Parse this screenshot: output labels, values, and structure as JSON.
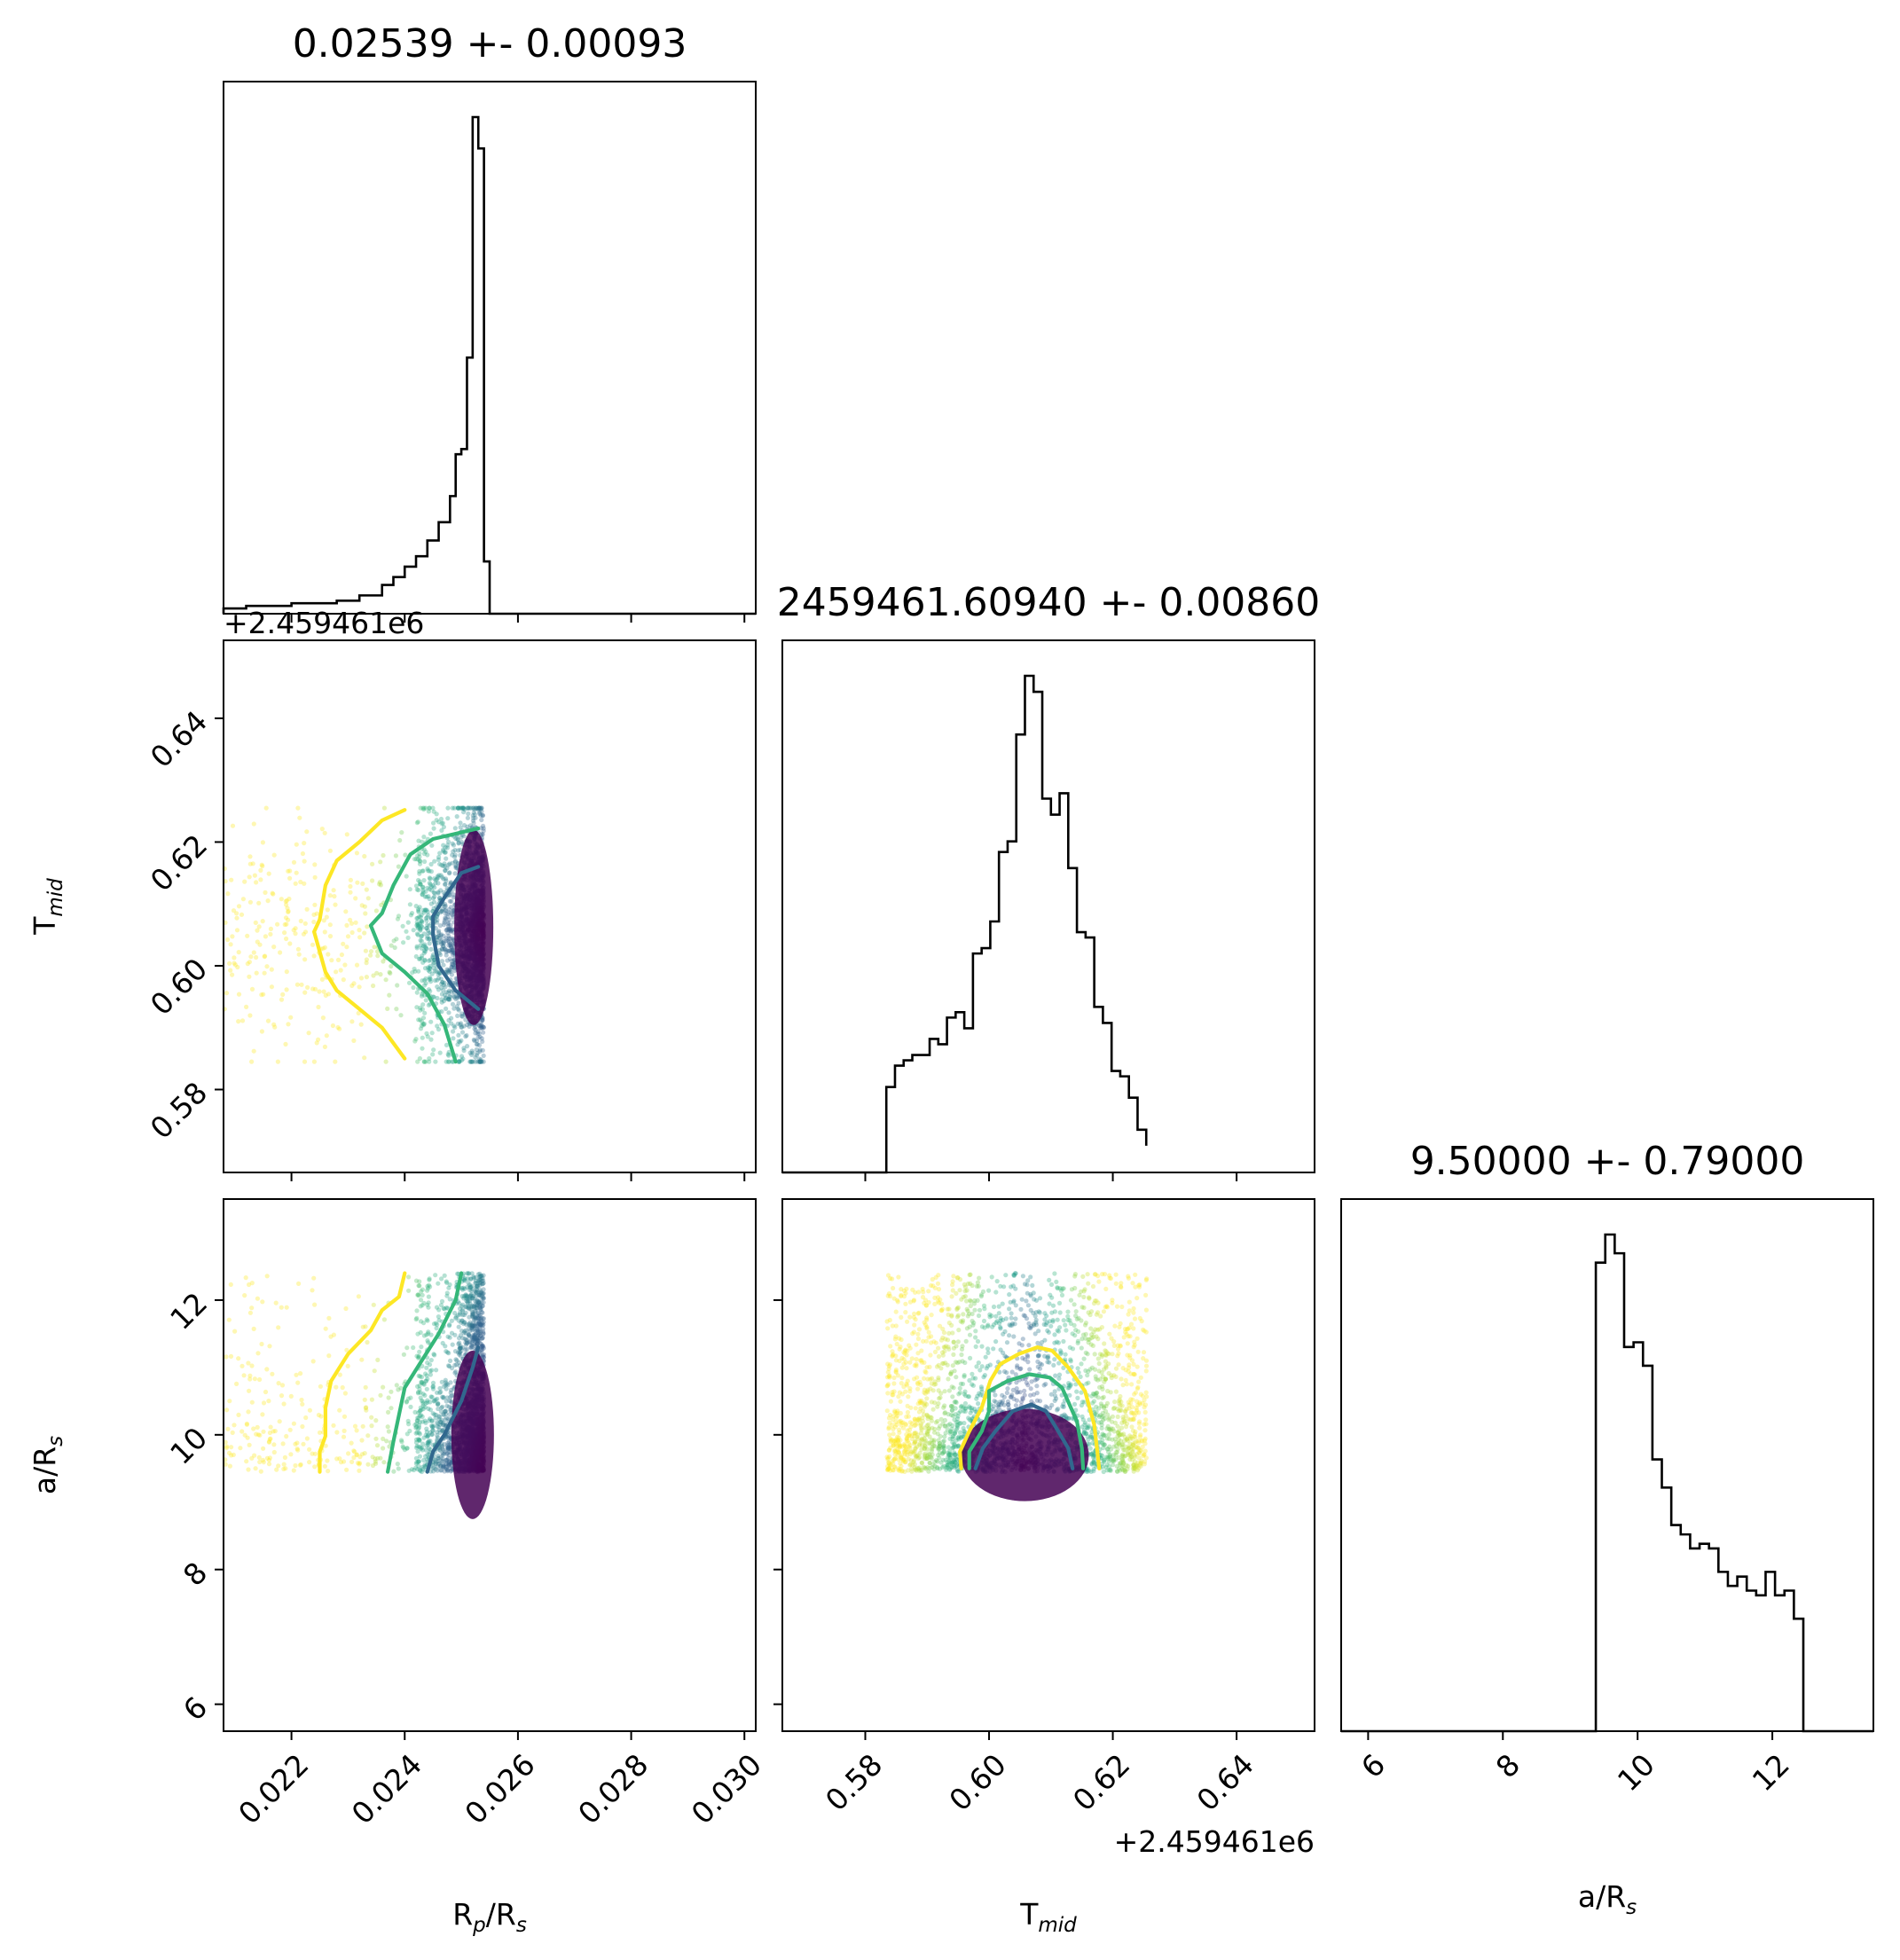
{
  "chart_data": {
    "type": "corner",
    "colors": {
      "hist": "#000000",
      "contour_outer": "#fde725",
      "contour_mid": "#35b779",
      "contour_inner": "#31688e",
      "dense": "#440154"
    },
    "params": [
      {
        "key": "rp",
        "label_main": "R",
        "label_sub": "p",
        "label_tail": "/R",
        "label_tail_sub": "s",
        "title": "0.02539 +- 0.00093",
        "range": [
          0.0208,
          0.0302
        ],
        "ticks": [
          "0.022",
          "0.024",
          "0.026",
          "0.028",
          "0.030"
        ],
        "tick_values": [
          0.022,
          0.024,
          0.026,
          0.028,
          0.03
        ]
      },
      {
        "key": "tmid",
        "label_main": "T",
        "label_sub": "mid",
        "label_tail": "",
        "label_tail_sub": "",
        "title": "2459461.60940 +- 0.00860",
        "range": [
          0.5666,
          0.6526
        ],
        "offset_text": "+2.459461e6",
        "ticks": [
          "0.58",
          "0.60",
          "0.62",
          "0.64"
        ],
        "tick_values": [
          0.58,
          0.6,
          0.62,
          0.64
        ]
      },
      {
        "key": "ars",
        "label_main": "a/R",
        "label_sub": "s",
        "label_tail": "",
        "label_tail_sub": "",
        "title": "9.50000 +- 0.79000",
        "range": [
          5.6,
          13.5
        ],
        "ticks": [
          "6",
          "8",
          "10",
          "12"
        ],
        "tick_values": [
          6,
          8,
          10,
          12
        ]
      }
    ],
    "hist_rp": {
      "bin_edges": [
        0.0208,
        0.0212,
        0.0216,
        0.022,
        0.0224,
        0.0228,
        0.0232,
        0.0236,
        0.0238,
        0.024,
        0.0242,
        0.0244,
        0.0246,
        0.0248,
        0.0249,
        0.025,
        0.0251,
        0.0252,
        0.0253,
        0.0254,
        0.0255,
        0.0302
      ],
      "counts": [
        2,
        3,
        3,
        4,
        4,
        5,
        7,
        11,
        14,
        18,
        22,
        28,
        35,
        45,
        61,
        63,
        98,
        190,
        178,
        20,
        0
      ]
    },
    "hist_tmid": {
      "bin_edges": [
        0.5834,
        0.5848,
        0.5862,
        0.5876,
        0.589,
        0.5904,
        0.5918,
        0.5932,
        0.5946,
        0.596,
        0.5974,
        0.5988,
        0.6002,
        0.6016,
        0.603,
        0.6044,
        0.6058,
        0.6072,
        0.6086,
        0.61,
        0.6114,
        0.6128,
        0.6142,
        0.6156,
        0.617,
        0.6184,
        0.6198,
        0.6212,
        0.6226,
        0.624,
        0.6254
      ],
      "counts": [
        16,
        20,
        21,
        22,
        22,
        25,
        24,
        29,
        30,
        27,
        41,
        42,
        47,
        60,
        62,
        82,
        93,
        90,
        70,
        67,
        71,
        57,
        45,
        44,
        31,
        28,
        19,
        18,
        14,
        8,
        5
      ]
    },
    "hist_ars": {
      "bin_edges": [
        9.38,
        9.52,
        9.66,
        9.8,
        9.94,
        10.08,
        10.22,
        10.36,
        10.5,
        10.64,
        10.78,
        10.92,
        11.06,
        11.2,
        11.34,
        11.48,
        11.62,
        11.76,
        11.9,
        12.04,
        12.18,
        12.32,
        12.46
      ],
      "counts": [
        100,
        106,
        102,
        82,
        83,
        78,
        58,
        52,
        44,
        42,
        39,
        40,
        39,
        34,
        31,
        33,
        30,
        29,
        34,
        29,
        30,
        24
      ]
    },
    "contours_rp_tmid": [
      {
        "level": "outer",
        "points": [
          [
            0.024,
            0.6252
          ],
          [
            0.0236,
            0.6235
          ],
          [
            0.0232,
            0.62
          ],
          [
            0.0228,
            0.617
          ],
          [
            0.0226,
            0.613
          ],
          [
            0.0225,
            0.6075
          ],
          [
            0.0224,
            0.6055
          ],
          [
            0.0226,
            0.599
          ],
          [
            0.0228,
            0.596
          ],
          [
            0.0232,
            0.593
          ],
          [
            0.0236,
            0.59
          ],
          [
            0.024,
            0.585
          ]
        ]
      },
      {
        "level": "mid",
        "points": [
          [
            0.0253,
            0.6222
          ],
          [
            0.0245,
            0.6205
          ],
          [
            0.0241,
            0.618
          ],
          [
            0.0238,
            0.613
          ],
          [
            0.0236,
            0.6085
          ],
          [
            0.0234,
            0.6065
          ],
          [
            0.0236,
            0.602
          ],
          [
            0.024,
            0.599
          ],
          [
            0.0244,
            0.5955
          ],
          [
            0.0247,
            0.5905
          ],
          [
            0.0249,
            0.5845
          ]
        ]
      },
      {
        "level": "inner",
        "points": [
          [
            0.0253,
            0.616
          ],
          [
            0.025,
            0.615
          ],
          [
            0.0247,
            0.611
          ],
          [
            0.0245,
            0.608
          ],
          [
            0.0245,
            0.605
          ],
          [
            0.0246,
            0.6
          ],
          [
            0.0249,
            0.596
          ],
          [
            0.0253,
            0.593
          ]
        ]
      }
    ],
    "contours_rp_ars": [
      {
        "level": "outer",
        "points": [
          [
            0.024,
            12.4
          ],
          [
            0.0239,
            12.05
          ],
          [
            0.0236,
            11.85
          ],
          [
            0.0234,
            11.55
          ],
          [
            0.023,
            11.2
          ],
          [
            0.0227,
            10.8
          ],
          [
            0.0226,
            10.4
          ],
          [
            0.0226,
            9.98
          ],
          [
            0.0225,
            9.75
          ],
          [
            0.0225,
            9.45
          ]
        ]
      },
      {
        "level": "mid",
        "points": [
          [
            0.025,
            12.4
          ],
          [
            0.0249,
            12.0
          ],
          [
            0.0246,
            11.5
          ],
          [
            0.0243,
            11.1
          ],
          [
            0.024,
            10.7
          ],
          [
            0.0239,
            10.3
          ],
          [
            0.0238,
            9.9
          ],
          [
            0.0237,
            9.45
          ]
        ]
      },
      {
        "level": "inner",
        "points": [
          [
            0.0253,
            11.3
          ],
          [
            0.0252,
            11.0
          ],
          [
            0.025,
            10.5
          ],
          [
            0.0247,
            10.0
          ],
          [
            0.0245,
            9.75
          ],
          [
            0.0244,
            9.45
          ]
        ]
      }
    ],
    "contours_tmid_ars": [
      {
        "level": "outer",
        "points": [
          [
            0.5955,
            9.5
          ],
          [
            0.5953,
            9.75
          ],
          [
            0.5968,
            10.05
          ],
          [
            0.5988,
            10.4
          ],
          [
            0.6002,
            10.8
          ],
          [
            0.6018,
            11.05
          ],
          [
            0.6048,
            11.2
          ],
          [
            0.6078,
            11.3
          ],
          [
            0.6102,
            11.25
          ],
          [
            0.6128,
            11.0
          ],
          [
            0.6155,
            10.65
          ],
          [
            0.617,
            10.15
          ],
          [
            0.6175,
            9.75
          ],
          [
            0.6178,
            9.5
          ]
        ]
      },
      {
        "level": "mid",
        "points": [
          [
            0.5968,
            9.5
          ],
          [
            0.5968,
            9.75
          ],
          [
            0.5988,
            10.05
          ],
          [
            0.6,
            10.35
          ],
          [
            0.6,
            10.65
          ],
          [
            0.603,
            10.8
          ],
          [
            0.6065,
            10.9
          ],
          [
            0.6098,
            10.85
          ],
          [
            0.6118,
            10.7
          ],
          [
            0.6142,
            10.2
          ],
          [
            0.615,
            9.8
          ],
          [
            0.6152,
            9.5
          ]
        ]
      },
      {
        "level": "inner",
        "points": [
          [
            0.5978,
            9.5
          ],
          [
            0.599,
            9.8
          ],
          [
            0.601,
            10.05
          ],
          [
            0.6038,
            10.35
          ],
          [
            0.6068,
            10.45
          ],
          [
            0.6092,
            10.35
          ],
          [
            0.6112,
            10.05
          ],
          [
            0.6128,
            9.8
          ],
          [
            0.6135,
            9.5
          ]
        ]
      }
    ]
  }
}
